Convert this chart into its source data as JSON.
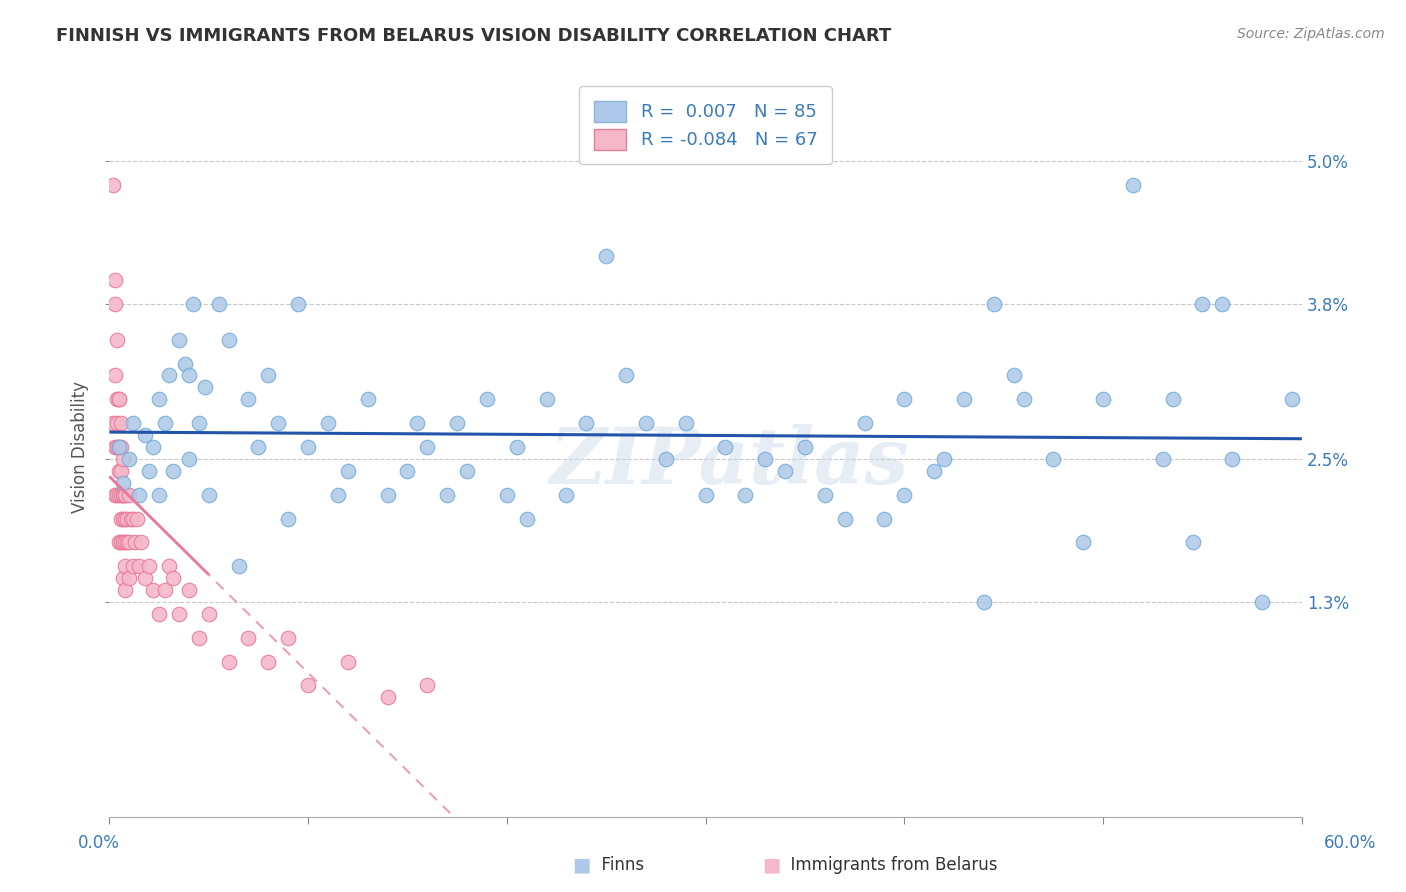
{
  "title": "FINNISH VS IMMIGRANTS FROM BELARUS VISION DISABILITY CORRELATION CHART",
  "source": "Source: ZipAtlas.com",
  "ylabel_label": "Vision Disability",
  "xlim": [
    0.0,
    0.6
  ],
  "ylim": [
    -0.005,
    0.057
  ],
  "x_ticks": [
    0.0,
    0.1,
    0.2,
    0.3,
    0.4,
    0.5,
    0.6
  ],
  "x_tick_labels": [
    "0.0%",
    "",
    "",
    "",
    "",
    "",
    "60.0%"
  ],
  "y_ticks": [
    0.013,
    0.025,
    0.038,
    0.05
  ],
  "y_tick_labels": [
    "1.3%",
    "2.5%",
    "3.8%",
    "5.0%"
  ],
  "grid_color": "#c8c8c8",
  "background_color": "#ffffff",
  "finns_color": "#adc8e8",
  "immigrants_color": "#f5b8ca",
  "finns_edge_color": "#6ea8d8",
  "immigrants_edge_color": "#e87898",
  "trend_line_finns_color": "#2255aa",
  "trend_line_imm_color": "#e8a0b8",
  "R_finns": 0.007,
  "N_finns": 85,
  "R_imm": -0.084,
  "N_imm": 67,
  "legend_label_finns": "Finns",
  "legend_label_imm": "Immigrants from Belarus",
  "legend_text_color": "#3a7bbf",
  "title_color": "#333333",
  "axis_label_color": "#555555",
  "tick_color": "#3a7bbf",
  "watermark": "ZIPatlas",
  "finns_x": [
    0.005,
    0.007,
    0.01,
    0.012,
    0.015,
    0.018,
    0.02,
    0.022,
    0.025,
    0.025,
    0.028,
    0.03,
    0.032,
    0.035,
    0.038,
    0.04,
    0.04,
    0.042,
    0.045,
    0.048,
    0.05,
    0.055,
    0.06,
    0.065,
    0.07,
    0.075,
    0.08,
    0.085,
    0.09,
    0.095,
    0.1,
    0.11,
    0.115,
    0.12,
    0.13,
    0.14,
    0.15,
    0.155,
    0.16,
    0.17,
    0.175,
    0.18,
    0.19,
    0.2,
    0.205,
    0.21,
    0.22,
    0.23,
    0.24,
    0.25,
    0.26,
    0.27,
    0.28,
    0.29,
    0.3,
    0.31,
    0.32,
    0.33,
    0.34,
    0.35,
    0.36,
    0.37,
    0.38,
    0.39,
    0.4,
    0.415,
    0.43,
    0.445,
    0.46,
    0.475,
    0.49,
    0.5,
    0.515,
    0.53,
    0.545,
    0.56,
    0.4,
    0.42,
    0.44,
    0.455,
    0.535,
    0.55,
    0.565,
    0.58,
    0.595
  ],
  "finns_y": [
    0.026,
    0.023,
    0.025,
    0.028,
    0.022,
    0.027,
    0.024,
    0.026,
    0.03,
    0.022,
    0.028,
    0.032,
    0.024,
    0.035,
    0.033,
    0.032,
    0.025,
    0.038,
    0.028,
    0.031,
    0.022,
    0.038,
    0.035,
    0.016,
    0.03,
    0.026,
    0.032,
    0.028,
    0.02,
    0.038,
    0.026,
    0.028,
    0.022,
    0.024,
    0.03,
    0.022,
    0.024,
    0.028,
    0.026,
    0.022,
    0.028,
    0.024,
    0.03,
    0.022,
    0.026,
    0.02,
    0.03,
    0.022,
    0.028,
    0.042,
    0.032,
    0.028,
    0.025,
    0.028,
    0.022,
    0.026,
    0.022,
    0.025,
    0.024,
    0.026,
    0.022,
    0.02,
    0.028,
    0.02,
    0.022,
    0.024,
    0.03,
    0.038,
    0.03,
    0.025,
    0.018,
    0.03,
    0.048,
    0.025,
    0.018,
    0.038,
    0.03,
    0.025,
    0.013,
    0.032,
    0.03,
    0.038,
    0.025,
    0.013,
    0.03
  ],
  "imm_x": [
    0.002,
    0.002,
    0.003,
    0.003,
    0.003,
    0.003,
    0.003,
    0.004,
    0.004,
    0.004,
    0.004,
    0.004,
    0.005,
    0.005,
    0.005,
    0.005,
    0.005,
    0.005,
    0.006,
    0.006,
    0.006,
    0.006,
    0.006,
    0.006,
    0.007,
    0.007,
    0.007,
    0.007,
    0.007,
    0.007,
    0.008,
    0.008,
    0.008,
    0.008,
    0.008,
    0.008,
    0.009,
    0.009,
    0.01,
    0.01,
    0.01,
    0.011,
    0.012,
    0.012,
    0.013,
    0.014,
    0.015,
    0.016,
    0.018,
    0.02,
    0.022,
    0.025,
    0.028,
    0.03,
    0.032,
    0.035,
    0.04,
    0.045,
    0.05,
    0.06,
    0.07,
    0.08,
    0.09,
    0.1,
    0.12,
    0.14,
    0.16
  ],
  "imm_y": [
    0.048,
    0.028,
    0.04,
    0.032,
    0.026,
    0.022,
    0.038,
    0.035,
    0.03,
    0.026,
    0.022,
    0.028,
    0.03,
    0.026,
    0.024,
    0.022,
    0.018,
    0.03,
    0.028,
    0.026,
    0.024,
    0.022,
    0.02,
    0.018,
    0.025,
    0.022,
    0.02,
    0.018,
    0.015,
    0.022,
    0.022,
    0.02,
    0.018,
    0.016,
    0.014,
    0.022,
    0.02,
    0.018,
    0.022,
    0.018,
    0.015,
    0.02,
    0.02,
    0.016,
    0.018,
    0.02,
    0.016,
    0.018,
    0.015,
    0.016,
    0.014,
    0.012,
    0.014,
    0.016,
    0.015,
    0.012,
    0.014,
    0.01,
    0.012,
    0.008,
    0.01,
    0.008,
    0.01,
    0.006,
    0.008,
    0.005,
    0.006
  ]
}
